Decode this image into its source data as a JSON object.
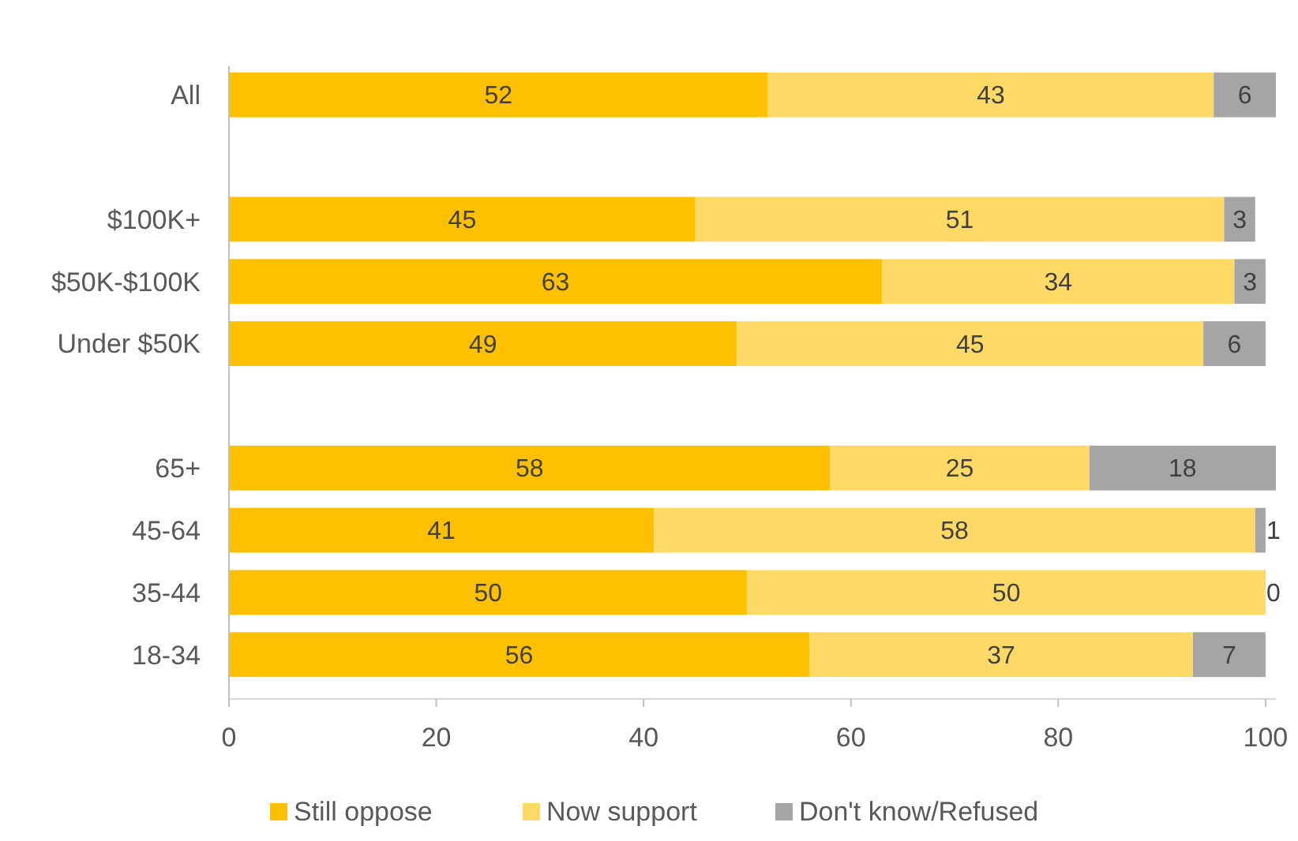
{
  "chart_data": {
    "type": "bar",
    "orientation": "horizontal",
    "stacked": true,
    "data_labels": true,
    "legend": "bottom",
    "grid": false,
    "categories": [
      "All",
      null,
      "$100K+",
      "$50K-$100K",
      "Under $50K",
      null,
      "65+",
      "45-64",
      "35-44",
      "18-34"
    ],
    "series": [
      {
        "name": "Still oppose",
        "color": "#ffc000",
        "values": [
          52,
          null,
          45,
          63,
          49,
          null,
          58,
          41,
          50,
          56
        ]
      },
      {
        "name": "Now support",
        "color": "#ffd966",
        "values": [
          43,
          null,
          51,
          34,
          45,
          null,
          25,
          58,
          50,
          37
        ]
      },
      {
        "name": "Don't know/Refused",
        "color": "#a5a5a5",
        "values": [
          6,
          null,
          3,
          3,
          6,
          null,
          18,
          1,
          0,
          7
        ]
      }
    ],
    "xlim": [
      0,
      101
    ],
    "xticks": [
      0,
      20,
      40,
      60,
      80,
      100
    ]
  }
}
